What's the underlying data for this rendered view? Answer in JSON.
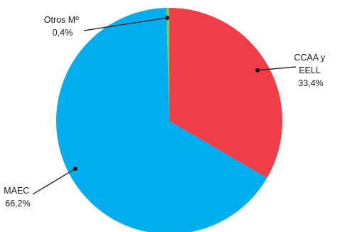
{
  "chart_data": {
    "type": "pie",
    "categories": [
      "CCAA y EELL",
      "MAEC",
      "Otros Mº"
    ],
    "values": [
      33.4,
      66.2,
      0.4
    ],
    "colors": [
      "#ef3e47",
      "#00aeef",
      "#8dc63f"
    ],
    "labels": [
      {
        "lines": [
          "CCAA y",
          "EELL"
        ],
        "value": "33,4%"
      },
      {
        "lines": [
          "MAEC"
        ],
        "value": "66,2%"
      },
      {
        "lines": [
          "Otros Mº"
        ],
        "value": "0,4%"
      }
    ],
    "title": "",
    "legend": "none"
  }
}
